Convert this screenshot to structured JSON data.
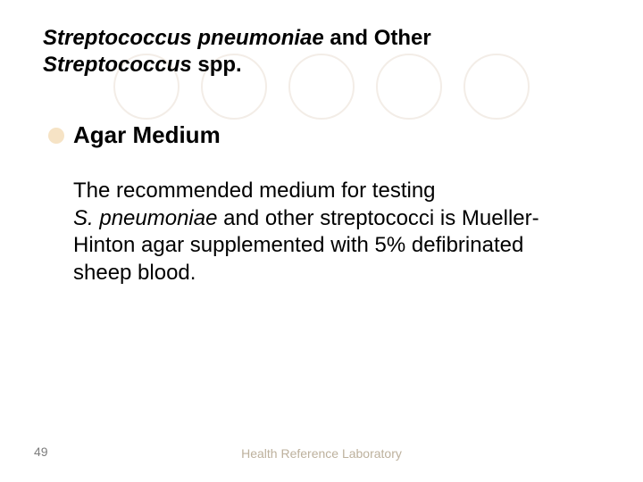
{
  "title": {
    "line1_italic": "Streptococcus pneumoniae",
    "line1_rest": " and Other",
    "line2_italic": "Streptococcus",
    "line2_rest": " spp."
  },
  "subheading": {
    "bullet_color": "#f6e3c5",
    "text": "Agar Medium"
  },
  "body": {
    "p1": "The recommended medium for testing",
    "p2_pre": " ",
    "p2_italic": "S. pneumoniae",
    "p2_post": " and other streptococci is Mueller-Hinton agar supplemented with 5% defibrinated sheep blood."
  },
  "footer": {
    "page_number": "49",
    "label": "Health Reference Laboratory"
  },
  "watermark": {
    "circle_border_color": "#f3ede7",
    "count": 5
  }
}
